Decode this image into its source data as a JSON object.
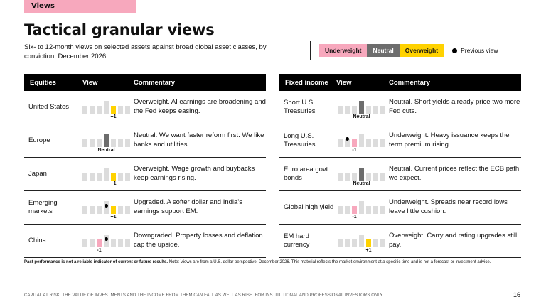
{
  "header": {
    "tag": "Views",
    "title": "Tactical granular views",
    "subtitle": "Six- to 12-month views on selected assets against broad global asset classes, by conviction, December 2026"
  },
  "legend": {
    "underweight": "Underweight",
    "neutral": "Neutral",
    "overweight": "Overweight",
    "previous": "Previous view"
  },
  "colors": {
    "underweight": "#f7a8bd",
    "neutral": "#6d6d6d",
    "overweight": "#ffd200",
    "inactive": "#dcdcdc"
  },
  "equities": {
    "headers": {
      "asset": "Equities",
      "view": "View",
      "commentary": "Commentary"
    },
    "rows": [
      {
        "name": "United States",
        "view": 1,
        "prev": null,
        "label": "+1",
        "commentary": "Overweight. AI earnings are broadening and the Fed keeps easing."
      },
      {
        "name": "Europe",
        "view": 0,
        "prev": null,
        "label": "Neutral",
        "commentary": "Neutral. We want faster reform first. We like banks and utilities."
      },
      {
        "name": "Japan",
        "view": 1,
        "prev": null,
        "label": "+1",
        "commentary": "Overweight. Wage growth and buybacks keep earnings rising."
      },
      {
        "name": "Emerging markets",
        "view": 1,
        "prev": 0,
        "label": "+1",
        "commentary": "Upgraded. A softer dollar and India’s earnings support EM."
      },
      {
        "name": "China",
        "view": -1,
        "prev": 0,
        "label": "-1",
        "commentary": "Downgraded. Property losses and deflation cap the upside."
      }
    ]
  },
  "fixed_income": {
    "headers": {
      "asset": "Fixed income",
      "view": "View",
      "commentary": "Commentary"
    },
    "rows": [
      {
        "name": "Short U.S. Treasuries",
        "view": 0,
        "prev": null,
        "label": "Neutral",
        "commentary": "Neutral. Short yields already price two more Fed cuts."
      },
      {
        "name": "Long U.S. Treasuries",
        "view": -1,
        "prev": -2,
        "label": "-1",
        "commentary": "Underweight. Heavy issuance keeps the term premium rising."
      },
      {
        "name": "Euro area govt bonds",
        "view": 0,
        "prev": null,
        "label": "Neutral",
        "commentary": "Neutral. Current prices reflect the ECB path we expect."
      },
      {
        "name": "Global high yield",
        "view": -1,
        "prev": null,
        "label": "-1",
        "commentary": "Underweight. Spreads near record lows leave little cushion."
      },
      {
        "name": "EM hard currency",
        "view": 1,
        "prev": null,
        "label": "+1",
        "commentary": "Overweight. Carry and rating upgrades still pay."
      }
    ]
  },
  "note": {
    "bold": "Past performance is not a reliable indicator of current or future results.",
    "text": " Note: Views are from a U.S. dollar perspective, December 2026. This material reflects the market environment at a specific time and is not a forecast or investment advice."
  },
  "footer": {
    "disclaimer": "CAPITAL AT RISK. THE VALUE OF INVESTMENTS AND THE INCOME FROM THEM CAN FALL AS WELL AS RISE. FOR INSTITUTIONAL AND PROFESSIONAL INVESTORS ONLY.",
    "page": "16"
  }
}
